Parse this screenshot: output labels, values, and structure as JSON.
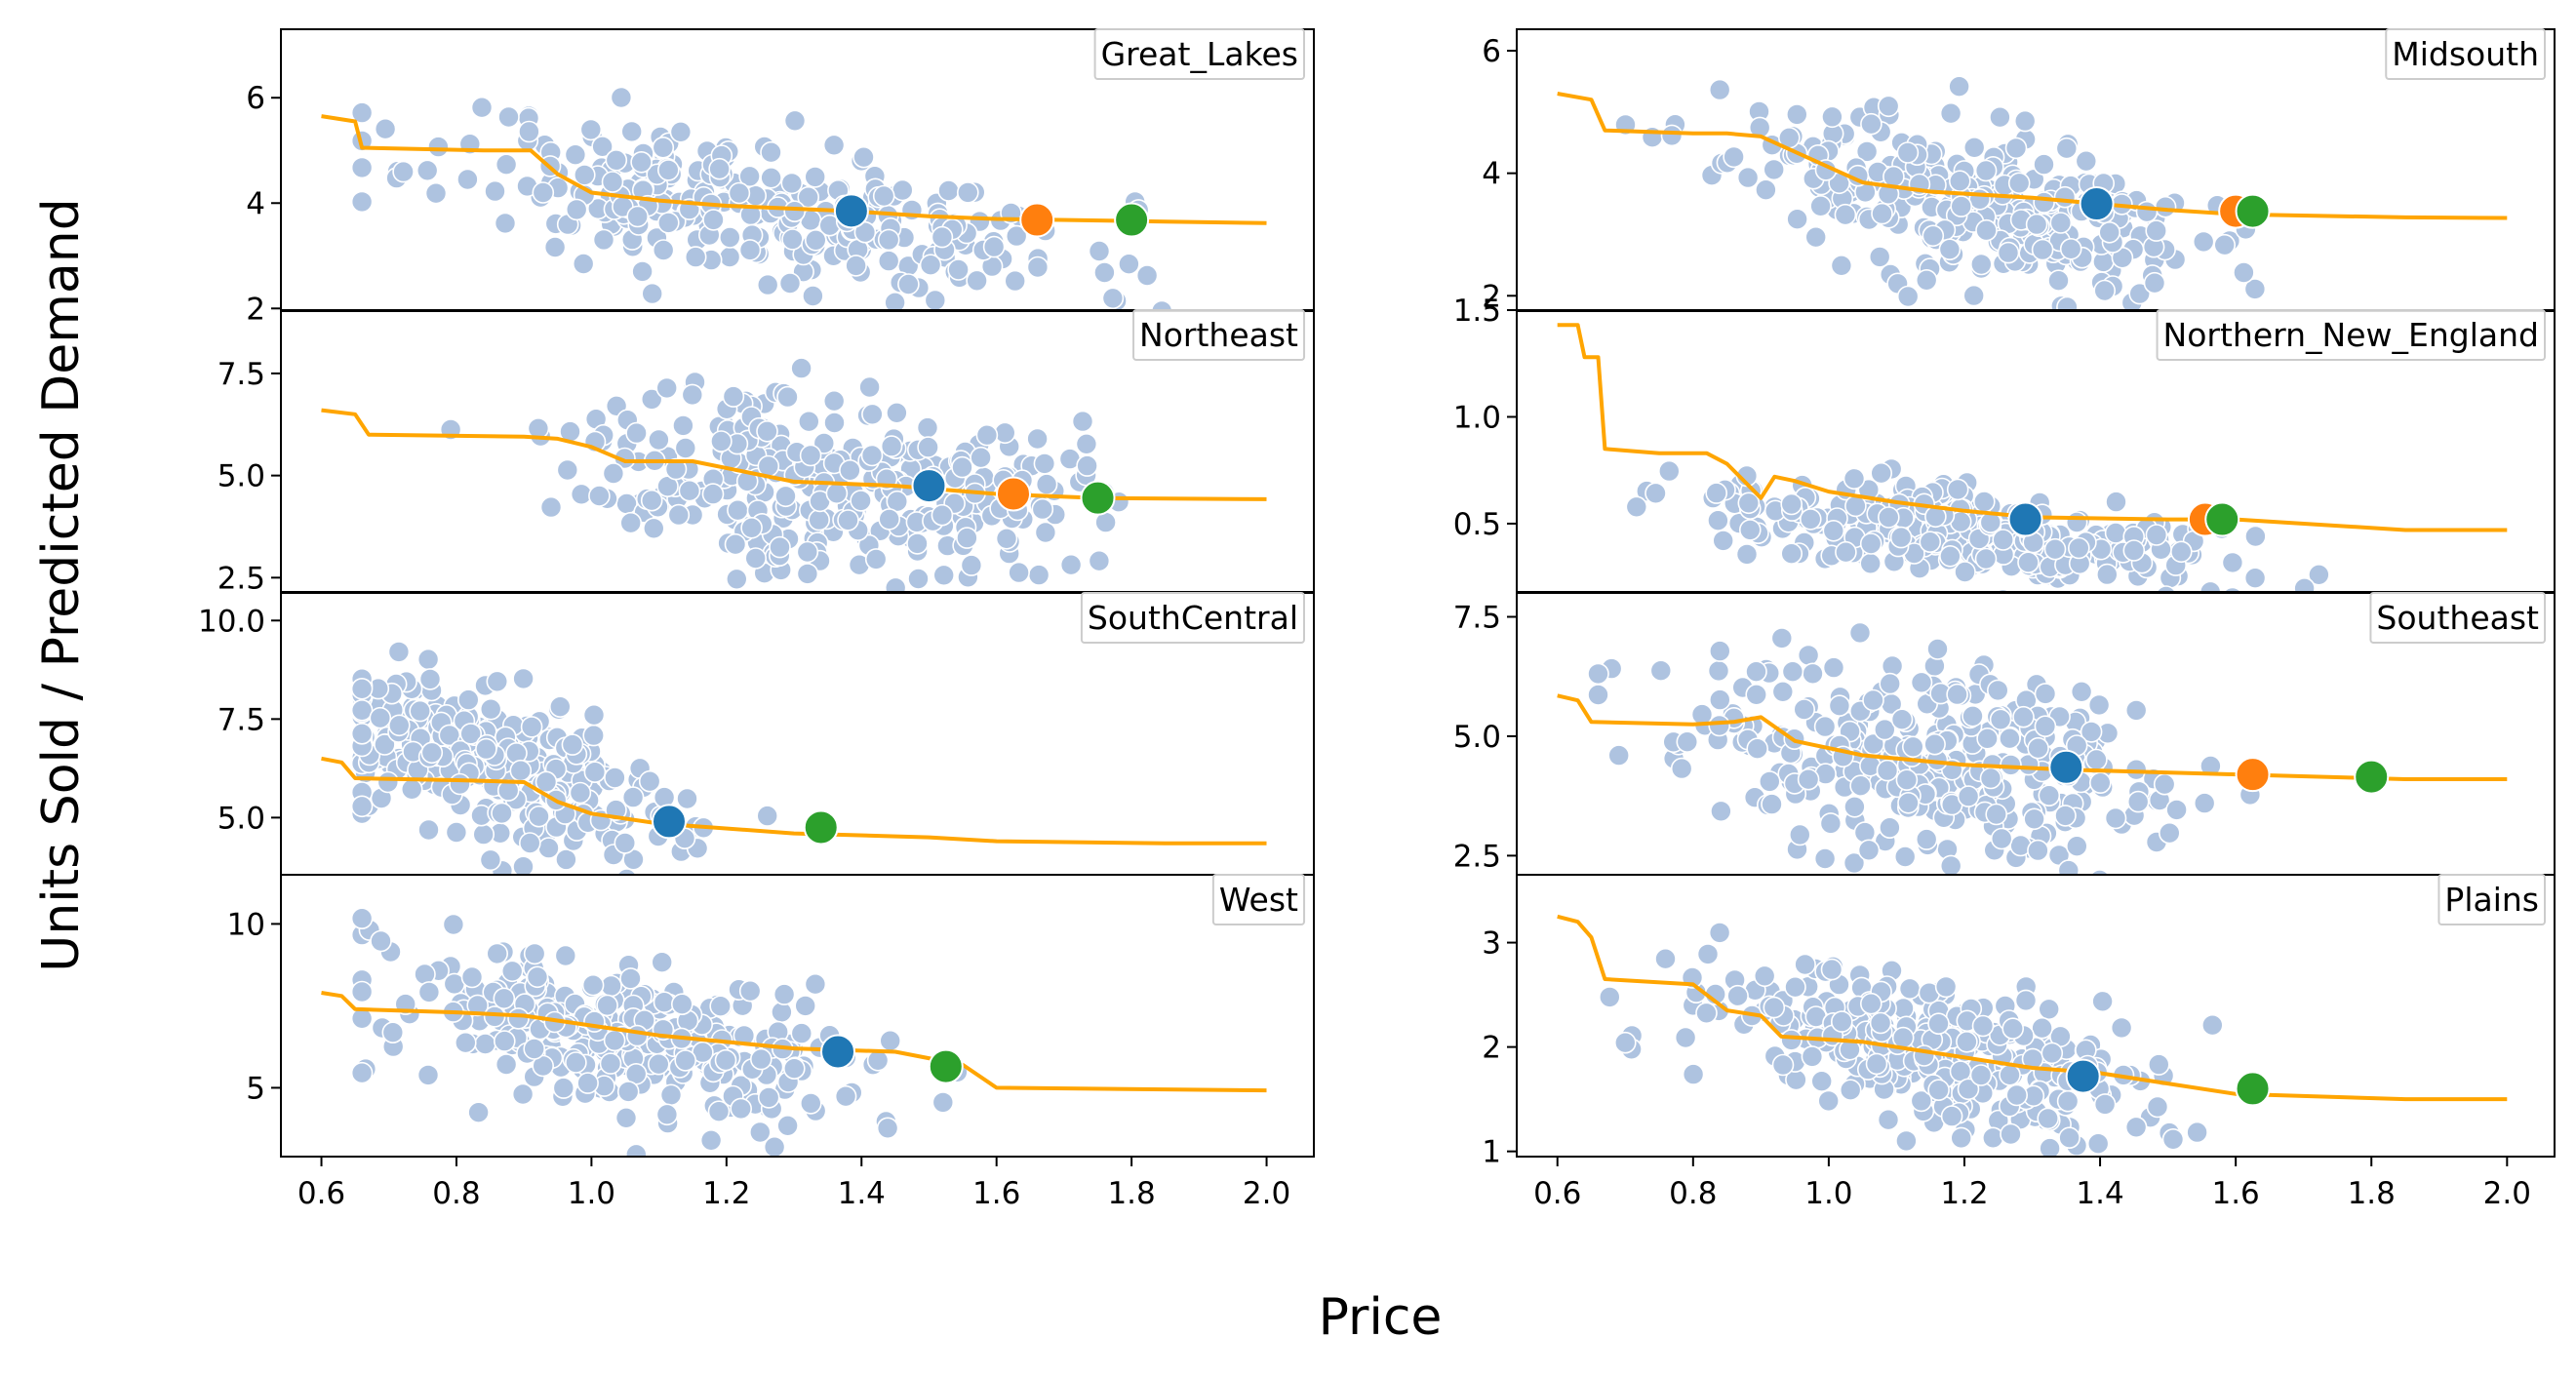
{
  "figure": {
    "ylabel": "Units Sold / Predicted Demand",
    "xlabel": "Price"
  },
  "colors": {
    "scatter": "#aec3e0",
    "curve": "#ffa500",
    "marker_blue": "#1f77b4",
    "marker_orange": "#ff7f0e",
    "marker_green": "#2ca02c"
  },
  "chart_data": [
    {
      "type": "scatter",
      "title": "Great_Lakes",
      "xlim": [
        0.54,
        2.07
      ],
      "ylim": [
        1.95,
        7.3
      ],
      "yticks": [
        2,
        4,
        6
      ],
      "xticks": [],
      "scatter_seed": 11,
      "scatter_count": 300,
      "scatter_trend": {
        "center": 1.25,
        "spread": 0.24,
        "y_at_center": 3.9,
        "slope": -2.1,
        "noise": 0.65
      },
      "curve": {
        "name": "Predicted Demand",
        "x": [
          0.6,
          0.65,
          0.66,
          0.84,
          0.91,
          0.95,
          1.0,
          1.1,
          1.2,
          1.38,
          1.5,
          1.6,
          1.85,
          2.0
        ],
        "y": [
          5.65,
          5.55,
          5.05,
          5.0,
          5.0,
          4.55,
          4.2,
          4.05,
          3.95,
          3.85,
          3.75,
          3.7,
          3.65,
          3.62
        ]
      },
      "markers": [
        {
          "name": "blue",
          "x": 1.385,
          "y": 3.85
        },
        {
          "name": "orange",
          "x": 1.66,
          "y": 3.68
        },
        {
          "name": "green",
          "x": 1.8,
          "y": 3.68
        }
      ]
    },
    {
      "type": "scatter",
      "title": "Midsouth",
      "xlim": [
        0.54,
        2.07
      ],
      "ylim": [
        1.75,
        6.35
      ],
      "yticks": [
        2,
        4,
        6
      ],
      "xticks": [],
      "scatter_seed": 23,
      "scatter_count": 300,
      "scatter_trend": {
        "center": 1.2,
        "spread": 0.17,
        "y_at_center": 3.55,
        "slope": -2.6,
        "noise": 0.6
      },
      "curve": {
        "name": "Predicted Demand",
        "x": [
          0.6,
          0.65,
          0.67,
          0.8,
          0.85,
          0.9,
          0.98,
          1.05,
          1.15,
          1.3,
          1.4,
          1.5,
          1.6,
          1.85,
          2.0
        ],
        "y": [
          5.3,
          5.2,
          4.7,
          4.65,
          4.65,
          4.6,
          4.2,
          3.85,
          3.7,
          3.6,
          3.5,
          3.4,
          3.33,
          3.28,
          3.27
        ]
      },
      "markers": [
        {
          "name": "blue",
          "x": 1.395,
          "y": 3.5
        },
        {
          "name": "orange",
          "x": 1.6,
          "y": 3.38
        },
        {
          "name": "green",
          "x": 1.625,
          "y": 3.38
        }
      ]
    },
    {
      "type": "scatter",
      "title": "Northeast",
      "xlim": [
        0.54,
        2.07
      ],
      "ylim": [
        2.15,
        9.05
      ],
      "yticks": [
        2.5,
        5.0,
        7.5
      ],
      "xticks": [],
      "scatter_seed": 37,
      "scatter_count": 320,
      "scatter_trend": {
        "center": 1.35,
        "spread": 0.18,
        "y_at_center": 4.9,
        "slope": -1.4,
        "noise": 1.1
      },
      "curve": {
        "name": "Predicted Demand",
        "x": [
          0.6,
          0.65,
          0.67,
          0.9,
          0.95,
          1.0,
          1.05,
          1.15,
          1.3,
          1.45,
          1.6,
          1.75,
          2.0
        ],
        "y": [
          6.6,
          6.5,
          6.0,
          5.95,
          5.9,
          5.7,
          5.35,
          5.35,
          4.85,
          4.75,
          4.55,
          4.45,
          4.42
        ]
      },
      "markers": [
        {
          "name": "blue",
          "x": 1.5,
          "y": 4.75
        },
        {
          "name": "orange",
          "x": 1.625,
          "y": 4.55
        },
        {
          "name": "green",
          "x": 1.75,
          "y": 4.45
        }
      ]
    },
    {
      "type": "scatter",
      "title": "Northern_New_England",
      "xlim": [
        0.54,
        2.07
      ],
      "ylim": [
        0.18,
        1.5
      ],
      "yticks": [
        0.5,
        1.0,
        1.5
      ],
      "xticks": [],
      "scatter_seed": 41,
      "scatter_count": 330,
      "scatter_trend": {
        "center": 1.2,
        "spread": 0.2,
        "y_at_center": 0.45,
        "slope": -0.35,
        "noise": 0.1
      },
      "curve": {
        "name": "Predicted Demand",
        "x": [
          0.6,
          0.63,
          0.64,
          0.66,
          0.67,
          0.75,
          0.82,
          0.85,
          0.9,
          0.92,
          0.95,
          1.0,
          1.1,
          1.2,
          1.3,
          1.5,
          1.6,
          1.85,
          2.0
        ],
        "y": [
          1.43,
          1.43,
          1.28,
          1.28,
          0.85,
          0.83,
          0.83,
          0.78,
          0.62,
          0.72,
          0.7,
          0.65,
          0.6,
          0.56,
          0.53,
          0.52,
          0.52,
          0.47,
          0.47
        ]
      },
      "markers": [
        {
          "name": "blue",
          "x": 1.29,
          "y": 0.52
        },
        {
          "name": "orange",
          "x": 1.555,
          "y": 0.52
        },
        {
          "name": "green",
          "x": 1.58,
          "y": 0.52
        }
      ]
    },
    {
      "type": "scatter",
      "title": "SouthCentral",
      "xlim": [
        0.54,
        2.07
      ],
      "ylim": [
        3.55,
        10.7
      ],
      "yticks": [
        5.0,
        7.5,
        10.0
      ],
      "xticks": [],
      "scatter_seed": 53,
      "scatter_count": 330,
      "scatter_trend": {
        "center": 0.85,
        "spread": 0.15,
        "y_at_center": 6.3,
        "slope": -5.0,
        "noise": 0.9
      },
      "curve": {
        "name": "Predicted Demand",
        "x": [
          0.6,
          0.63,
          0.65,
          0.8,
          0.9,
          0.95,
          1.0,
          1.1,
          1.3,
          1.5,
          1.6,
          1.85,
          2.0
        ],
        "y": [
          6.5,
          6.4,
          6.0,
          5.95,
          5.9,
          5.4,
          5.1,
          4.85,
          4.6,
          4.5,
          4.4,
          4.35,
          4.35
        ]
      },
      "markers": [
        {
          "name": "blue",
          "x": 1.115,
          "y": 4.9
        },
        {
          "name": "green",
          "x": 1.34,
          "y": 4.75
        }
      ]
    },
    {
      "type": "scatter",
      "title": "Southeast",
      "xlim": [
        0.54,
        2.07
      ],
      "ylim": [
        2.1,
        8.0
      ],
      "yticks": [
        2.5,
        5.0,
        7.5
      ],
      "xticks": [],
      "scatter_seed": 61,
      "scatter_count": 330,
      "scatter_trend": {
        "center": 1.15,
        "spread": 0.18,
        "y_at_center": 4.5,
        "slope": -1.8,
        "noise": 1.0
      },
      "curve": {
        "name": "Predicted Demand",
        "x": [
          0.6,
          0.63,
          0.65,
          0.8,
          0.86,
          0.9,
          0.95,
          1.05,
          1.2,
          1.35,
          1.6,
          1.85,
          2.0
        ],
        "y": [
          5.85,
          5.75,
          5.3,
          5.25,
          5.3,
          5.4,
          4.9,
          4.6,
          4.4,
          4.3,
          4.2,
          4.1,
          4.1
        ]
      },
      "markers": [
        {
          "name": "blue",
          "x": 1.35,
          "y": 4.35
        },
        {
          "name": "orange",
          "x": 1.625,
          "y": 4.2
        },
        {
          "name": "green",
          "x": 1.8,
          "y": 4.15
        }
      ]
    },
    {
      "type": "scatter",
      "title": "West",
      "xlim": [
        0.54,
        2.07
      ],
      "ylim": [
        2.9,
        11.5
      ],
      "yticks": [
        5,
        10
      ],
      "xticks": [
        0.6,
        0.8,
        1.0,
        1.2,
        1.4,
        1.6,
        1.8,
        2.0
      ],
      "scatter_seed": 71,
      "scatter_count": 330,
      "scatter_trend": {
        "center": 1.05,
        "spread": 0.18,
        "y_at_center": 6.5,
        "slope": -3.5,
        "noise": 1.1
      },
      "curve": {
        "name": "Predicted Demand",
        "x": [
          0.6,
          0.63,
          0.65,
          0.8,
          0.9,
          1.0,
          1.1,
          1.2,
          1.3,
          1.45,
          1.55,
          1.6,
          1.85,
          2.0
        ],
        "y": [
          7.9,
          7.8,
          7.4,
          7.3,
          7.2,
          6.9,
          6.6,
          6.4,
          6.2,
          6.1,
          5.7,
          5.0,
          4.95,
          4.92
        ]
      },
      "markers": [
        {
          "name": "blue",
          "x": 1.365,
          "y": 6.1
        },
        {
          "name": "green",
          "x": 1.525,
          "y": 5.65
        }
      ]
    },
    {
      "type": "scatter",
      "title": "Plains",
      "xlim": [
        0.54,
        2.07
      ],
      "ylim": [
        0.95,
        3.65
      ],
      "yticks": [
        1,
        2,
        3
      ],
      "xticks": [
        0.6,
        0.8,
        1.0,
        1.2,
        1.4,
        1.6,
        1.8,
        2.0
      ],
      "scatter_seed": 83,
      "scatter_count": 320,
      "scatter_trend": {
        "center": 1.15,
        "spread": 0.17,
        "y_at_center": 1.95,
        "slope": -1.5,
        "noise": 0.35
      },
      "curve": {
        "name": "Predicted Demand",
        "x": [
          0.6,
          0.63,
          0.65,
          0.67,
          0.8,
          0.85,
          0.9,
          0.93,
          1.05,
          1.15,
          1.3,
          1.4,
          1.5,
          1.6,
          1.85,
          2.0
        ],
        "y": [
          3.25,
          3.2,
          3.05,
          2.65,
          2.6,
          2.35,
          2.3,
          2.1,
          2.05,
          1.95,
          1.8,
          1.75,
          1.65,
          1.55,
          1.5,
          1.5
        ]
      },
      "markers": [
        {
          "name": "blue",
          "x": 1.375,
          "y": 1.72
        },
        {
          "name": "green",
          "x": 1.625,
          "y": 1.6
        }
      ]
    }
  ]
}
